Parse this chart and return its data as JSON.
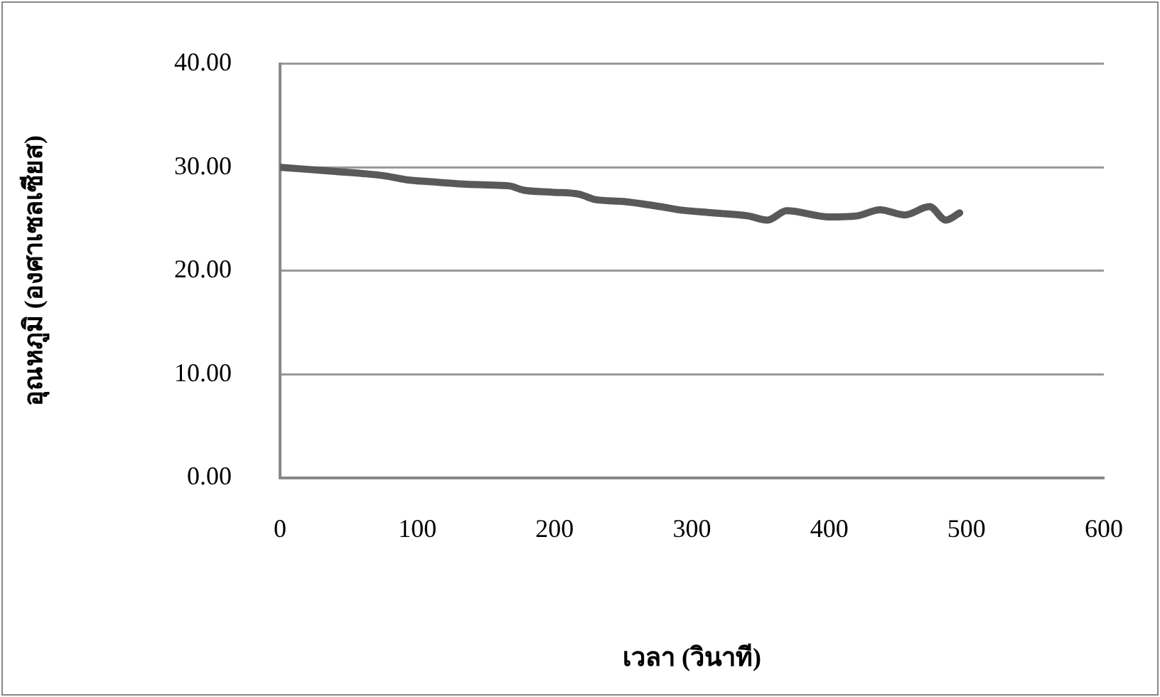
{
  "chart_data": {
    "type": "line",
    "xlabel": "เวลา (วินาที)",
    "ylabel": "อุณหภูมิ (องศาเซลเซียส)",
    "x": [
      0,
      20,
      40,
      60,
      75,
      92,
      110,
      130,
      150,
      167,
      177,
      198,
      218,
      229,
      250,
      277,
      290,
      315,
      341,
      355,
      369,
      400,
      420,
      437,
      455,
      473,
      485,
      495
    ],
    "series": [
      {
        "color": "#595959",
        "values": [
          30.0,
          29.8,
          29.6,
          29.4,
          29.2,
          28.8,
          28.6,
          28.4,
          28.3,
          28.2,
          27.8,
          27.6,
          27.4,
          26.9,
          26.7,
          26.2,
          25.9,
          25.6,
          25.3,
          24.9,
          25.8,
          25.2,
          25.3,
          25.9,
          25.4,
          26.2,
          24.9,
          25.6
        ]
      }
    ],
    "xlim": [
      0,
      600
    ],
    "xticks": [
      0,
      100,
      200,
      300,
      400,
      500,
      600
    ],
    "ylim": [
      0,
      40
    ],
    "yticks": [
      {
        "value": 0,
        "label": "0.00"
      },
      {
        "value": 10,
        "label": "10.00"
      },
      {
        "value": 20,
        "label": "20.00"
      },
      {
        "value": 30,
        "label": "30.00"
      },
      {
        "value": 40,
        "label": "40.00"
      }
    ],
    "grid": "y",
    "legend": false,
    "marker": "none",
    "line_style": "solid"
  }
}
